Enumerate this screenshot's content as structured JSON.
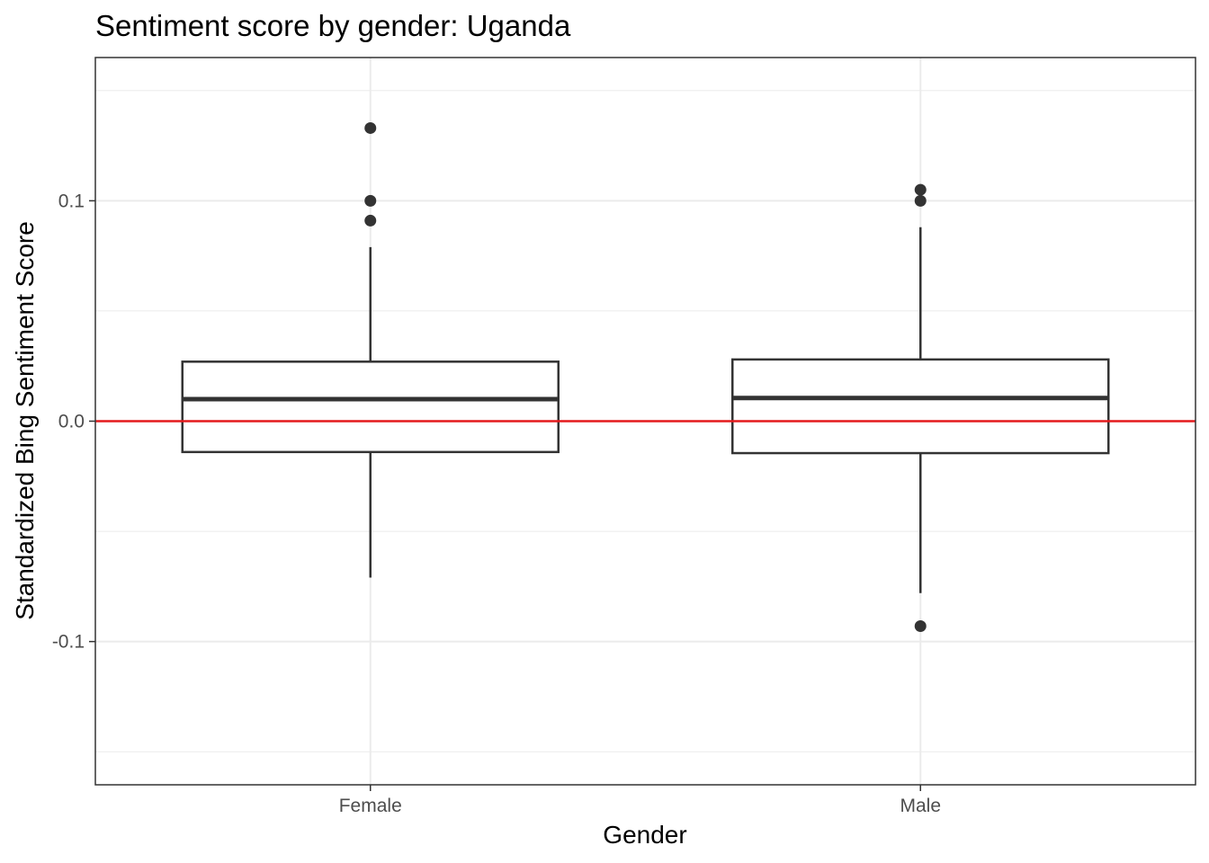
{
  "chart_data": {
    "type": "boxplot",
    "title": "Sentiment score by gender: Uganda",
    "xlabel": "Gender",
    "ylabel": "Standardized Bing Sentiment Score",
    "categories": [
      "Female",
      "Male"
    ],
    "ylim": [
      -0.165,
      0.165
    ],
    "yticks": [
      -0.1,
      0.0,
      0.1
    ],
    "ytick_labels": [
      "-0.1",
      "0.0",
      "0.1"
    ],
    "grid": true,
    "reference_line": {
      "y": 0.0,
      "color": "#e41a1c"
    },
    "boxes": [
      {
        "category": "Female",
        "whisker_low": -0.071,
        "q1": -0.014,
        "median": 0.01,
        "q3": 0.027,
        "whisker_high": 0.079,
        "outliers": [
          0.133,
          0.1,
          0.091
        ]
      },
      {
        "category": "Male",
        "whisker_low": -0.078,
        "q1": -0.0145,
        "median": 0.0105,
        "q3": 0.028,
        "whisker_high": 0.088,
        "outliers": [
          0.105,
          0.1,
          -0.093
        ]
      }
    ],
    "colors": {
      "box_stroke": "#333333",
      "box_fill": "#ffffff",
      "outlier": "#333333",
      "grid": "#ebebeb",
      "panel_border": "#333333"
    }
  }
}
